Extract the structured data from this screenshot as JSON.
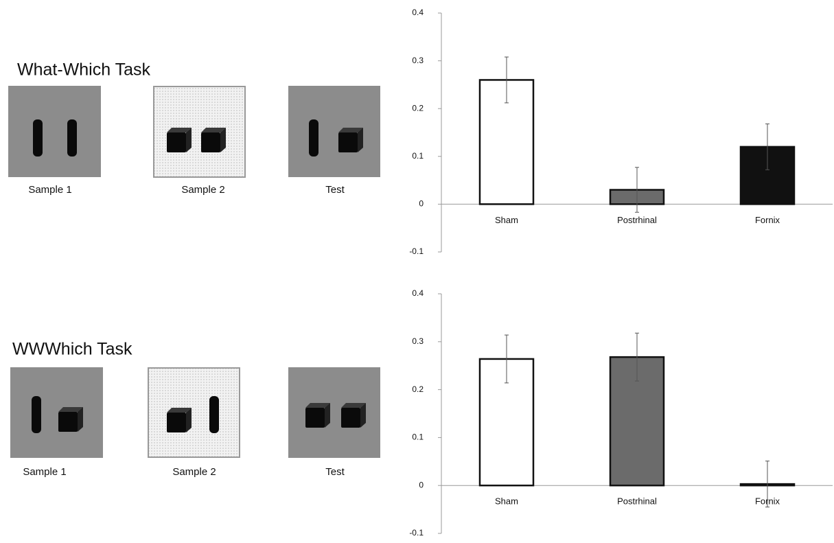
{
  "tasks": [
    {
      "title": "What-Which Task",
      "panels": [
        "Sample 1",
        "Sample 2",
        "Test"
      ]
    },
    {
      "title": "WWWhich Task",
      "panels": [
        "Sample 1",
        "Sample 2",
        "Test"
      ]
    }
  ],
  "chart_data": [
    {
      "type": "bar",
      "categories": [
        "Sham",
        "Postrhinal",
        "Fornix"
      ],
      "values": [
        0.26,
        0.03,
        0.12
      ],
      "errors": [
        0.048,
        0.047,
        0.048
      ],
      "colors": [
        "#ffffff",
        "#6b6b6b",
        "#111111"
      ],
      "ylim": [
        -0.1,
        0.4
      ],
      "yticks": [
        -0.1,
        0,
        0.1,
        0.2,
        0.3,
        0.4
      ]
    },
    {
      "type": "bar",
      "categories": [
        "Sham",
        "Postrhinal",
        "Fornix"
      ],
      "values": [
        0.264,
        0.268,
        0.003
      ],
      "errors": [
        0.05,
        0.05,
        0.048
      ],
      "colors": [
        "#ffffff",
        "#6b6b6b",
        "#111111"
      ],
      "ylim": [
        -0.1,
        0.4
      ],
      "yticks": [
        -0.1,
        0,
        0.1,
        0.2,
        0.3,
        0.4
      ]
    }
  ]
}
